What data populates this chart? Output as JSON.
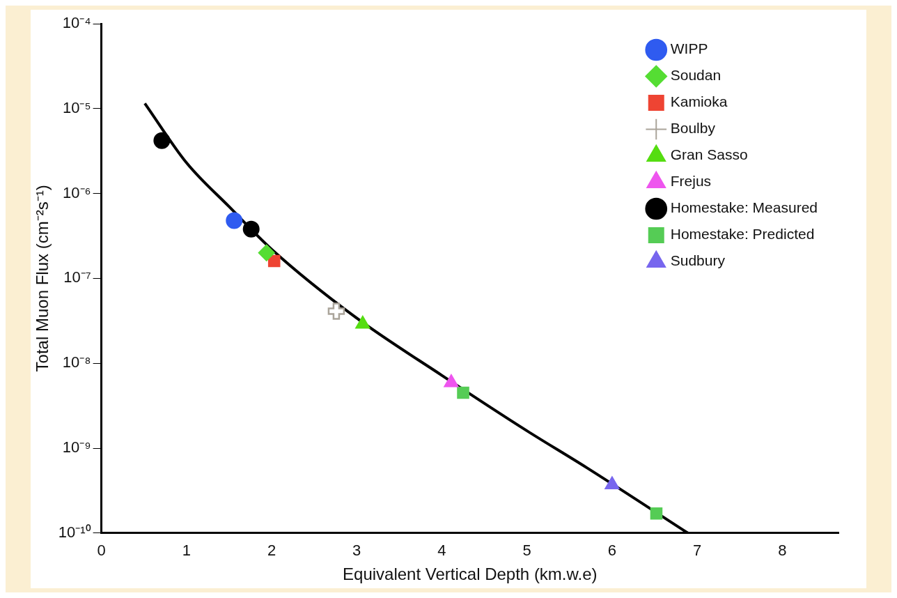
{
  "chart_data": {
    "type": "scatter",
    "xlabel": "Equivalent Vertical Depth (km.w.e)",
    "ylabel": "Total Muon Flux (cm⁻²s⁻¹)",
    "xlim": [
      0,
      8.66
    ],
    "xticks": [
      0,
      1,
      2,
      3,
      4,
      5,
      6,
      7,
      8
    ],
    "ylim": [
      1e-10,
      0.0001
    ],
    "yticks": [
      {
        "value": 1e-10,
        "label": "10⁻¹⁰"
      },
      {
        "value": 1e-09,
        "label": "10⁻⁹"
      },
      {
        "value": 1e-08,
        "label": "10⁻⁸"
      },
      {
        "value": 1e-07,
        "label": "10⁻⁷"
      },
      {
        "value": 1e-06,
        "label": "10⁻⁶"
      },
      {
        "value": 1e-05,
        "label": "10⁻⁵"
      },
      {
        "value": 0.0001,
        "label": "10⁻⁴"
      }
    ],
    "log": "y",
    "grid": false,
    "legend": "top right",
    "series": [
      {
        "name": "WIPP",
        "color": "#2f5bf0",
        "marker": "circle",
        "x": [
          1.56
        ],
        "values": [
          4.8e-07
        ]
      },
      {
        "name": "Soudan",
        "color": "#55dd33",
        "marker": "diamond",
        "x": [
          1.94
        ],
        "values": [
          2e-07
        ]
      },
      {
        "name": "Kamioka",
        "color": "#ee4433",
        "marker": "square",
        "x": [
          2.03
        ],
        "values": [
          1.6e-07
        ]
      },
      {
        "name": "Boulby",
        "color": "#aaa49a",
        "marker": "cross",
        "x": [
          2.76
        ],
        "values": [
          4.1e-08
        ]
      },
      {
        "name": "Gran Sasso",
        "color": "#55dd11",
        "marker": "triangle",
        "x": [
          3.07
        ],
        "values": [
          2.9e-08
        ]
      },
      {
        "name": "Frejus",
        "color": "#ee55ee",
        "marker": "triangle",
        "x": [
          4.11
        ],
        "values": [
          5.9e-09
        ]
      },
      {
        "name": "Homestake: Measured",
        "color": "#000000",
        "marker": "circle",
        "x": [
          0.71,
          1.76
        ],
        "values": [
          4.2e-06,
          3.8e-07
        ]
      },
      {
        "name": "Homestake: Predicted",
        "color": "#55cc55",
        "marker": "square",
        "x": [
          4.25,
          6.52
        ],
        "values": [
          4.5e-09,
          1.7e-10
        ]
      },
      {
        "name": "Sudbury",
        "color": "#7766ee",
        "marker": "triangle",
        "x": [
          6.0
        ],
        "values": [
          3.7e-10
        ]
      },
      {
        "type": "line",
        "color": "#000000",
        "marker": "none",
        "x": [
          0.51,
          1.0,
          1.5,
          2.0,
          3.0,
          4.0,
          5.0,
          5.7,
          6.89
        ],
        "values": [
          1.15e-05,
          2.3e-06,
          7e-07,
          2.2e-07,
          3.4e-08,
          7.2e-09,
          1.6e-09,
          5.9e-10,
          1e-10
        ]
      }
    ]
  }
}
